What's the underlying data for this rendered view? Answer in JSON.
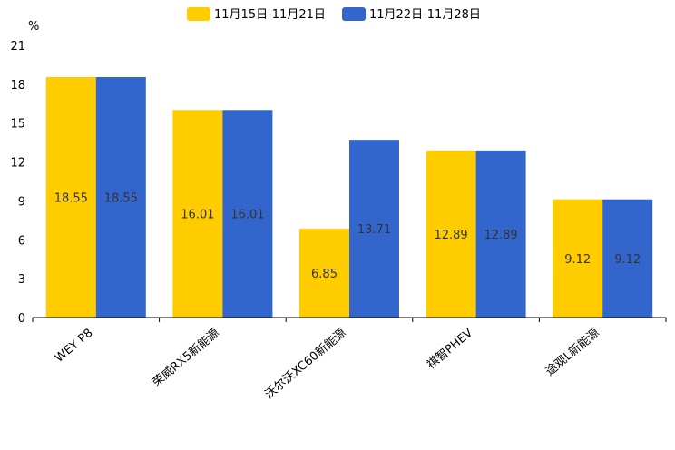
{
  "chart_data": {
    "type": "bar",
    "title": "",
    "xlabel": "",
    "ylabel": "%",
    "ylim": [
      0,
      21
    ],
    "yticks": [
      0,
      3,
      6,
      9,
      12,
      15,
      18,
      21
    ],
    "grid": false,
    "legend_position": "top-center",
    "categories": [
      "WEY P8",
      "荣威RX5新能源",
      "沃尔沃XC60新能源",
      "祺智PHEV",
      "途观L新能源"
    ],
    "series": [
      {
        "name": "11月15日-11月21日",
        "color": "#ffcc00",
        "values": [
          18.55,
          16.01,
          6.85,
          12.89,
          9.12
        ]
      },
      {
        "name": "11月22日-11月28日",
        "color": "#3366cc",
        "values": [
          18.55,
          16.01,
          13.71,
          12.89,
          9.12
        ]
      }
    ]
  }
}
